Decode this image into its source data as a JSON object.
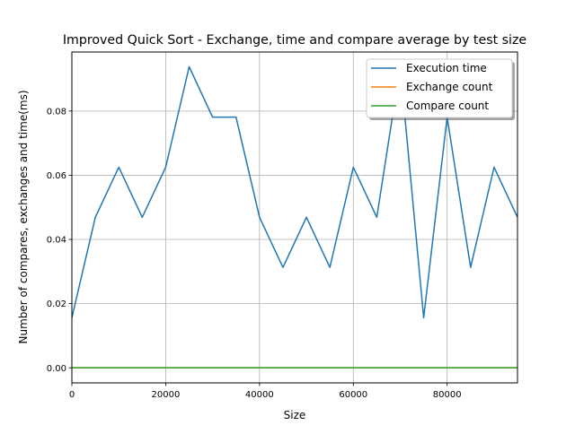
{
  "chart_data": {
    "type": "line",
    "title": "Improved Quick Sort - Exchange, time and compare average by test size",
    "xlabel": "Size",
    "ylabel": "Number of compares, exchanges and time(ms)",
    "xlim": [
      0,
      95000
    ],
    "ylim": [
      -0.0047,
      0.0984
    ],
    "xticks": [
      0,
      20000,
      40000,
      60000,
      80000
    ],
    "yticks": [
      0.0,
      0.02,
      0.04,
      0.06,
      0.08
    ],
    "xtick_labels": [
      "0",
      "20000",
      "40000",
      "60000",
      "80000"
    ],
    "ytick_labels": [
      "0.00",
      "0.02",
      "0.04",
      "0.06",
      "0.08"
    ],
    "grid": true,
    "legend_position": "top-right",
    "x": [
      0,
      5000,
      10000,
      15000,
      20000,
      25000,
      30000,
      35000,
      40000,
      45000,
      50000,
      55000,
      60000,
      65000,
      70000,
      75000,
      80000,
      85000,
      90000,
      95000
    ],
    "series": [
      {
        "name": "Execution time",
        "color": "#1f77b4",
        "values": [
          0.0156,
          0.0469,
          0.0625,
          0.0469,
          0.0625,
          0.0938,
          0.0781,
          0.0781,
          0.0469,
          0.0313,
          0.0469,
          0.0313,
          0.0625,
          0.0469,
          0.0938,
          0.0156,
          0.0781,
          0.0313,
          0.0625,
          0.0469
        ]
      },
      {
        "name": "Exchange count",
        "color": "#ff7f0e",
        "values": [
          0,
          0,
          0,
          0,
          0,
          0,
          0,
          0,
          0,
          0,
          0,
          0,
          0,
          0,
          0,
          0,
          0,
          0,
          0,
          0
        ]
      },
      {
        "name": "Compare count",
        "color": "#2ca02c",
        "values": [
          0,
          0,
          0,
          0,
          0,
          0,
          0,
          0,
          0,
          0,
          0,
          0,
          0,
          0,
          0,
          0,
          0,
          0,
          0,
          0
        ]
      }
    ]
  }
}
